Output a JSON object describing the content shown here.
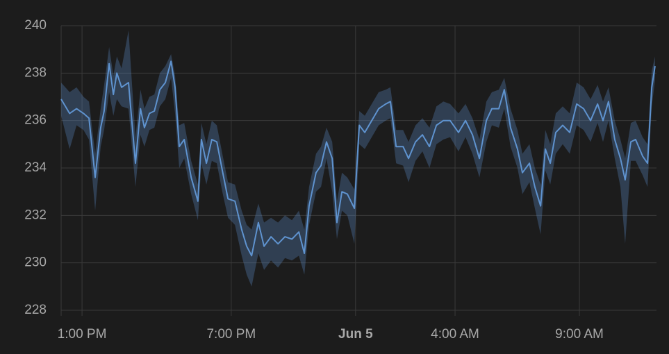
{
  "chart_data": {
    "type": "line",
    "x": [
      12.16,
      12.5,
      12.78,
      13.06,
      13.28,
      13.53,
      13.75,
      13.89,
      14.09,
      14.26,
      14.4,
      14.59,
      14.87,
      15.15,
      15.35,
      15.51,
      15.71,
      15.91,
      16.13,
      16.35,
      16.58,
      16.74,
      16.91,
      17.11,
      17.39,
      17.66,
      17.8,
      18.0,
      18.22,
      18.42,
      18.64,
      18.87,
      19.15,
      19.42,
      19.62,
      19.82,
      20.09,
      20.32,
      20.6,
      20.88,
      21.16,
      21.44,
      21.72,
      21.94,
      22.13,
      22.41,
      22.61,
      22.83,
      23.06,
      23.25,
      23.45,
      23.67,
      23.95,
      24.15,
      24.37,
      24.65,
      24.93,
      25.21,
      25.4,
      25.63,
      25.91,
      26.13,
      26.41,
      26.69,
      26.97,
      27.25,
      27.53,
      27.8,
      28.14,
      28.42,
      28.7,
      28.98,
      29.26,
      29.48,
      29.76,
      29.98,
      30.23,
      30.51,
      30.71,
      30.99,
      31.21,
      31.44,
      31.63,
      31.83,
      32.05,
      32.33,
      32.61,
      32.89,
      33.17,
      33.45,
      33.73,
      33.95,
      34.17,
      34.42,
      34.65,
      34.84,
      35.07,
      35.26,
      35.54,
      35.74,
      35.91,
      36.04
    ],
    "values": [
      236.9,
      236.3,
      236.5,
      236.3,
      236.1,
      233.6,
      235.7,
      236.4,
      238.4,
      237.1,
      238.0,
      237.4,
      237.6,
      234.2,
      236.5,
      235.7,
      236.3,
      236.4,
      237.3,
      237.6,
      238.5,
      237.4,
      234.9,
      235.2,
      233.6,
      232.6,
      235.2,
      234.2,
      235.2,
      235.1,
      233.9,
      232.7,
      232.6,
      231.4,
      230.7,
      230.3,
      231.7,
      230.7,
      231.1,
      230.8,
      231.1,
      231.0,
      231.3,
      230.4,
      232.4,
      233.8,
      234.1,
      235.1,
      234.4,
      231.7,
      233.0,
      232.9,
      232.3,
      235.8,
      235.5,
      236.0,
      236.5,
      236.7,
      236.8,
      234.9,
      234.9,
      234.4,
      235.1,
      235.4,
      234.9,
      235.8,
      236.0,
      236.0,
      235.5,
      236.0,
      235.4,
      234.4,
      236.0,
      236.5,
      236.5,
      237.3,
      235.7,
      234.8,
      233.8,
      234.2,
      233.2,
      232.4,
      234.8,
      234.2,
      235.5,
      235.8,
      235.5,
      236.7,
      236.5,
      236.0,
      236.7,
      236.0,
      236.8,
      235.2,
      234.4,
      233.5,
      235.1,
      235.2,
      234.5,
      234.2,
      237.4,
      238.3
    ],
    "band_high": [
      237.6,
      237.2,
      237.4,
      237.0,
      236.8,
      234.6,
      236.5,
      237.5,
      239.1,
      237.9,
      238.7,
      238.2,
      239.8,
      235.3,
      237.3,
      236.5,
      237.0,
      237.1,
      238.0,
      238.3,
      238.8,
      237.9,
      235.8,
      235.9,
      234.3,
      233.3,
      235.9,
      235.0,
      236.0,
      235.8,
      234.6,
      233.4,
      233.3,
      232.2,
      231.6,
      231.4,
      232.5,
      231.7,
      231.9,
      231.7,
      232.0,
      231.8,
      232.2,
      231.4,
      233.2,
      234.6,
      234.9,
      235.7,
      235.1,
      232.6,
      233.8,
      233.6,
      233.1,
      236.4,
      236.2,
      236.7,
      237.2,
      237.3,
      237.4,
      235.6,
      235.6,
      235.1,
      235.8,
      236.1,
      235.7,
      236.6,
      236.8,
      236.7,
      236.3,
      236.7,
      236.1,
      235.2,
      236.8,
      237.2,
      237.3,
      237.8,
      236.5,
      235.6,
      234.6,
      235.0,
      234.0,
      233.3,
      235.6,
      235.0,
      236.3,
      236.6,
      236.3,
      237.6,
      237.4,
      236.9,
      237.5,
      236.8,
      237.4,
      236.0,
      235.2,
      234.4,
      235.9,
      236.0,
      235.3,
      235.0,
      238.1,
      238.7
    ],
    "band_low": [
      236.2,
      234.8,
      235.8,
      235.6,
      235.2,
      232.2,
      234.9,
      235.6,
      237.2,
      236.2,
      236.9,
      236.6,
      236.5,
      233.2,
      235.4,
      234.9,
      235.6,
      235.7,
      236.6,
      236.9,
      237.8,
      236.3,
      234.0,
      234.4,
      232.9,
      231.8,
      234.2,
      233.3,
      234.3,
      234.2,
      233.0,
      231.9,
      231.6,
      230.3,
      229.5,
      229.0,
      230.4,
      229.7,
      230.1,
      229.8,
      230.2,
      230.1,
      230.3,
      229.5,
      231.6,
      233.0,
      233.2,
      234.4,
      233.0,
      231.0,
      232.2,
      232.0,
      230.8,
      235.0,
      234.8,
      235.3,
      235.8,
      236.0,
      236.1,
      234.2,
      234.1,
      233.4,
      234.3,
      234.7,
      234.0,
      235.0,
      235.2,
      235.3,
      234.7,
      235.3,
      234.6,
      233.6,
      235.1,
      235.8,
      235.7,
      236.5,
      234.9,
      234.0,
      232.9,
      233.4,
      232.3,
      231.2,
      233.9,
      233.3,
      234.6,
      235.0,
      234.6,
      235.8,
      235.6,
      235.1,
      235.9,
      235.1,
      236.0,
      234.4,
      233.2,
      230.8,
      234.3,
      234.3,
      233.7,
      233.2,
      236.6,
      237.7
    ],
    "color": "#5f93cf",
    "xlim": [
      12.16,
      36.1
    ],
    "xticks": [
      {
        "value": 13,
        "label": "1:00 PM"
      },
      {
        "value": 19,
        "label": "7:00 PM"
      },
      {
        "value": 24,
        "label": "Jun 5",
        "bold": true
      },
      {
        "value": 28,
        "label": "4:00 AM"
      },
      {
        "value": 33,
        "label": "9:00 AM"
      }
    ],
    "ylim": [
      228,
      240
    ],
    "yticks": [
      228,
      230,
      232,
      234,
      236,
      238,
      240
    ],
    "grid": true
  }
}
